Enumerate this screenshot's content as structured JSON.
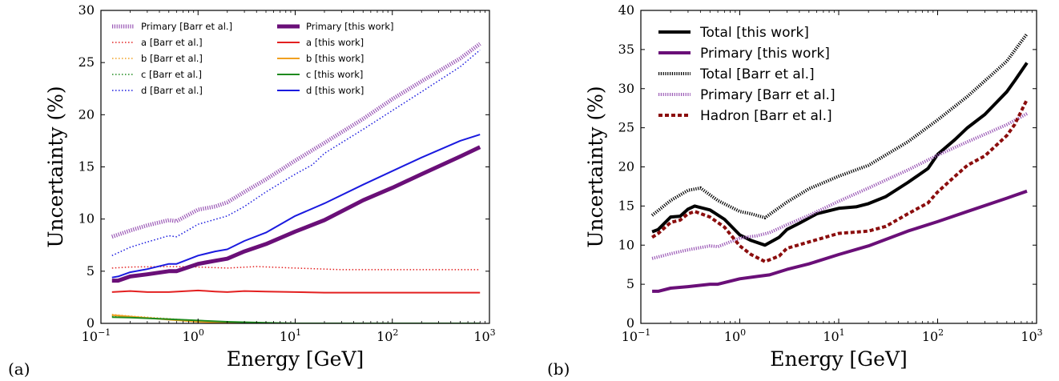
{
  "chart_data": [
    {
      "panel_label": "(a)",
      "type": "line",
      "xlabel": "Energy [GeV]",
      "ylabel": "Uncertainty (%)",
      "xscale": "log",
      "xlim": [
        0.1,
        1000
      ],
      "ylim": [
        0,
        30
      ],
      "xticks": [
        {
          "base": "10",
          "exp": "−1"
        },
        {
          "base": "10",
          "exp": "0"
        },
        {
          "base": "10",
          "exp": "1"
        },
        {
          "base": "10",
          "exp": "2"
        },
        {
          "base": "10",
          "exp": "3"
        }
      ],
      "yticks": [
        "0",
        "5",
        "10",
        "15",
        "20",
        "25",
        "30"
      ],
      "legend": {
        "placement": "top-left",
        "columns": 2
      },
      "series": [
        {
          "name": "Primary [Barr et al.]",
          "color": "#9b59b6",
          "style": "dense-dotted",
          "width": 5,
          "x": [
            0.13,
            0.2,
            0.3,
            0.5,
            0.6,
            1,
            1.5,
            2,
            3,
            5,
            10,
            20,
            50,
            100,
            200,
            500,
            800
          ],
          "y": [
            8.3,
            8.9,
            9.4,
            9.9,
            9.8,
            10.9,
            11.2,
            11.6,
            12.6,
            13.8,
            15.6,
            17.3,
            19.6,
            21.5,
            23.2,
            25.4,
            26.8
          ]
        },
        {
          "name": "a [Barr et al.]",
          "color": "#e32020",
          "style": "dotted",
          "width": 1.5,
          "x": [
            0.13,
            0.2,
            0.5,
            1,
            2,
            4,
            10,
            30,
            100,
            300,
            800
          ],
          "y": [
            5.3,
            5.4,
            5.45,
            5.4,
            5.3,
            5.45,
            5.3,
            5.15,
            5.15,
            5.15,
            5.15
          ]
        },
        {
          "name": "b [Barr et al.]",
          "color": "#f0a020",
          "style": "dotted",
          "width": 1.5,
          "x": [
            0.13,
            0.2,
            0.5,
            1,
            2,
            5,
            10,
            100,
            800
          ],
          "y": [
            0.85,
            0.7,
            0.45,
            0.25,
            0.1,
            0.02,
            0,
            0,
            0
          ]
        },
        {
          "name": "c [Barr et al.]",
          "color": "#1e8a1e",
          "style": "dotted",
          "width": 1.5,
          "x": [
            0.13,
            0.2,
            0.5,
            1,
            2,
            5,
            10,
            100,
            800
          ],
          "y": [
            0.7,
            0.6,
            0.4,
            0.25,
            0.12,
            0.03,
            0,
            0,
            0
          ]
        },
        {
          "name": "d [Barr et al.]",
          "color": "#1a1adf",
          "style": "dotted",
          "width": 1.5,
          "x": [
            0.13,
            0.2,
            0.3,
            0.5,
            0.6,
            1,
            2,
            3,
            5,
            10,
            15,
            20,
            50,
            100,
            200,
            500,
            800
          ],
          "y": [
            6.5,
            7.3,
            7.8,
            8.4,
            8.3,
            9.5,
            10.3,
            11.2,
            12.6,
            14.3,
            15.2,
            16.3,
            18.6,
            20.4,
            22.2,
            24.6,
            26.2
          ]
        },
        {
          "name": "Primary [this work]",
          "color": "#6a0f78",
          "style": "solid",
          "width": 5,
          "x": [
            0.13,
            0.15,
            0.2,
            0.3,
            0.5,
            0.6,
            1,
            1.5,
            2,
            3,
            5,
            10,
            20,
            50,
            100,
            200,
            500,
            800
          ],
          "y": [
            4.1,
            4.1,
            4.5,
            4.7,
            5.0,
            5.0,
            5.7,
            6.0,
            6.2,
            6.9,
            7.6,
            8.8,
            9.9,
            11.8,
            13.0,
            14.3,
            16.0,
            16.9
          ]
        },
        {
          "name": "a [this work]",
          "color": "#e32020",
          "style": "solid",
          "width": 2,
          "x": [
            0.13,
            0.2,
            0.3,
            0.5,
            1,
            1.5,
            2,
            3,
            5,
            10,
            20,
            50,
            100,
            300,
            800
          ],
          "y": [
            3.0,
            3.1,
            3.0,
            3.0,
            3.15,
            3.05,
            3.0,
            3.1,
            3.05,
            3.0,
            2.95,
            2.95,
            2.95,
            2.95,
            2.95
          ]
        },
        {
          "name": "b [this work]",
          "color": "#f0a020",
          "style": "solid",
          "width": 2,
          "x": [
            0.13,
            0.2,
            0.5,
            1,
            2,
            5,
            10,
            100,
            800
          ],
          "y": [
            0.8,
            0.65,
            0.35,
            0.15,
            0.05,
            0,
            0,
            0,
            0
          ]
        },
        {
          "name": "c [this work]",
          "color": "#1e8a1e",
          "style": "solid",
          "width": 2,
          "x": [
            0.13,
            0.2,
            0.5,
            1,
            2,
            5,
            10,
            100,
            800
          ],
          "y": [
            0.6,
            0.55,
            0.4,
            0.28,
            0.15,
            0.05,
            0,
            0,
            0
          ]
        },
        {
          "name": "d [this work]",
          "color": "#1a1adf",
          "style": "solid",
          "width": 2,
          "x": [
            0.13,
            0.15,
            0.2,
            0.3,
            0.5,
            0.6,
            1,
            1.5,
            2,
            3,
            5,
            10,
            20,
            50,
            100,
            200,
            500,
            800
          ],
          "y": [
            4.4,
            4.5,
            4.9,
            5.2,
            5.7,
            5.7,
            6.5,
            6.9,
            7.1,
            7.9,
            8.7,
            10.3,
            11.5,
            13.3,
            14.6,
            15.9,
            17.5,
            18.1
          ]
        }
      ]
    },
    {
      "panel_label": "(b)",
      "type": "line",
      "xlabel": "Energy [GeV]",
      "ylabel": "Uncertainty (%)",
      "xscale": "log",
      "xlim": [
        0.1,
        1000
      ],
      "ylim": [
        0,
        40
      ],
      "xticks": [
        {
          "base": "10",
          "exp": "−1"
        },
        {
          "base": "10",
          "exp": "0"
        },
        {
          "base": "10",
          "exp": "1"
        },
        {
          "base": "10",
          "exp": "2"
        },
        {
          "base": "10",
          "exp": "3"
        }
      ],
      "yticks": [
        "0",
        "5",
        "10",
        "15",
        "20",
        "25",
        "30",
        "35",
        "40"
      ],
      "legend": {
        "placement": "top-left",
        "columns": 1
      },
      "series": [
        {
          "name": "Total [this work]",
          "color": "#000000",
          "style": "solid",
          "width": 4,
          "x": [
            0.13,
            0.15,
            0.2,
            0.25,
            0.3,
            0.35,
            0.5,
            0.7,
            1,
            1.3,
            1.8,
            2.5,
            3,
            4,
            6,
            10,
            15,
            20,
            30,
            50,
            80,
            100,
            150,
            200,
            300,
            500,
            600,
            800
          ],
          "y": [
            11.7,
            12.0,
            13.6,
            13.7,
            14.6,
            15.0,
            14.5,
            13.3,
            11.3,
            10.6,
            10.0,
            11.0,
            12.0,
            12.8,
            14.0,
            14.7,
            14.9,
            15.3,
            16.2,
            18.0,
            19.8,
            21.6,
            23.5,
            25.0,
            26.7,
            29.6,
            31.0,
            33.3
          ]
        },
        {
          "name": "Primary [this work]",
          "color": "#6a0f78",
          "style": "solid",
          "width": 4,
          "x": [
            0.13,
            0.15,
            0.2,
            0.3,
            0.5,
            0.6,
            1,
            1.5,
            2,
            3,
            5,
            10,
            20,
            50,
            100,
            200,
            500,
            800
          ],
          "y": [
            4.1,
            4.1,
            4.5,
            4.7,
            5.0,
            5.0,
            5.7,
            6.0,
            6.2,
            6.9,
            7.6,
            8.8,
            9.9,
            11.8,
            13.0,
            14.3,
            16.0,
            16.9
          ]
        },
        {
          "name": "Total [Barr et al.]",
          "color": "#000000",
          "style": "dense-dotted",
          "width": 4,
          "x": [
            0.13,
            0.2,
            0.3,
            0.4,
            0.6,
            1,
            1.3,
            1.8,
            3,
            5,
            10,
            20,
            50,
            100,
            200,
            500,
            800
          ],
          "y": [
            13.8,
            15.7,
            17.0,
            17.3,
            15.7,
            14.3,
            14.0,
            13.5,
            15.5,
            17.2,
            18.8,
            20.2,
            23.2,
            26.0,
            29.0,
            33.5,
            37.0
          ]
        },
        {
          "name": "Primary [Barr et al.]",
          "color": "#9b59b6",
          "style": "dense-dotted",
          "width": 4,
          "x": [
            0.13,
            0.2,
            0.3,
            0.5,
            0.6,
            1,
            1.5,
            2,
            3,
            5,
            10,
            20,
            50,
            100,
            200,
            500,
            800
          ],
          "y": [
            8.3,
            8.9,
            9.4,
            9.9,
            9.8,
            10.9,
            11.2,
            11.6,
            12.6,
            13.8,
            15.6,
            17.3,
            19.6,
            21.5,
            23.2,
            25.4,
            26.8
          ]
        },
        {
          "name": "Hadron [Barr et al.]",
          "color": "#8b0d0d",
          "style": "dashed",
          "width": 4,
          "x": [
            0.13,
            0.15,
            0.2,
            0.25,
            0.3,
            0.35,
            0.5,
            0.7,
            1,
            1.3,
            1.8,
            2.5,
            3,
            5,
            10,
            20,
            30,
            50,
            80,
            100,
            150,
            200,
            300,
            500,
            600,
            800
          ],
          "y": [
            11.0,
            11.5,
            12.9,
            13.2,
            14.0,
            14.3,
            13.6,
            12.3,
            9.9,
            8.8,
            7.9,
            8.6,
            9.6,
            10.4,
            11.5,
            11.8,
            12.4,
            14.0,
            15.4,
            16.8,
            18.8,
            20.2,
            21.4,
            24.0,
            25.4,
            28.6
          ]
        }
      ]
    }
  ]
}
